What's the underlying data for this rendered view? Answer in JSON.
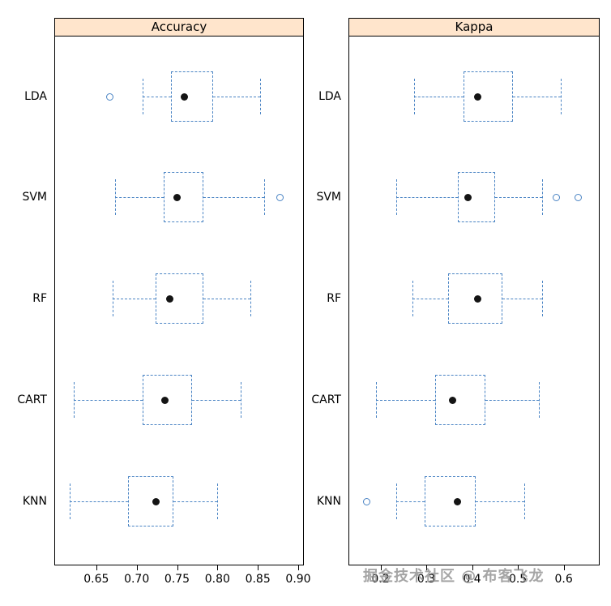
{
  "colors": {
    "box_line": "#4a84c4",
    "median_dot": "#141414",
    "strip_fill": "#ffe5cc",
    "panel_border": "#000000",
    "watermark": "#8f8f8f"
  },
  "watermark": {
    "text": "掘金技术社区 @ 布客飞龙"
  },
  "categories": [
    "LDA",
    "SVM",
    "RF",
    "CART",
    "KNN"
  ],
  "chart_data": [
    {
      "type": "boxplot",
      "title": "Accuracy",
      "orientation": "horizontal",
      "xlim": [
        0.598,
        0.905
      ],
      "ticks": [
        0.65,
        0.7,
        0.75,
        0.8,
        0.85,
        0.9
      ],
      "tick_labels": [
        "0.65",
        "0.70",
        "0.75",
        "0.80",
        "0.85",
        "0.90"
      ],
      "boxes": [
        {
          "category": "LDA",
          "whisker_low": 0.706,
          "q1": 0.741,
          "median": 0.758,
          "q3": 0.794,
          "whisker_high": 0.852,
          "outliers": [
            0.666
          ]
        },
        {
          "category": "SVM",
          "whisker_low": 0.672,
          "q1": 0.732,
          "median": 0.749,
          "q3": 0.782,
          "whisker_high": 0.857,
          "outliers": [
            0.876
          ]
        },
        {
          "category": "RF",
          "whisker_low": 0.669,
          "q1": 0.722,
          "median": 0.74,
          "q3": 0.782,
          "whisker_high": 0.84,
          "outliers": []
        },
        {
          "category": "CART",
          "whisker_low": 0.621,
          "q1": 0.706,
          "median": 0.734,
          "q3": 0.768,
          "whisker_high": 0.828,
          "outliers": []
        },
        {
          "category": "KNN",
          "whisker_low": 0.616,
          "q1": 0.688,
          "median": 0.723,
          "q3": 0.744,
          "whisker_high": 0.799,
          "outliers": []
        }
      ]
    },
    {
      "type": "boxplot",
      "title": "Kappa",
      "orientation": "horizontal",
      "xlim": [
        0.13,
        0.675
      ],
      "ticks": [
        0.2,
        0.3,
        0.4,
        0.5,
        0.6
      ],
      "tick_labels": [
        "0.2",
        "0.3",
        "0.4",
        "0.5",
        "0.6"
      ],
      "boxes": [
        {
          "category": "LDA",
          "whisker_low": 0.272,
          "q1": 0.379,
          "median": 0.41,
          "q3": 0.487,
          "whisker_high": 0.591,
          "outliers": []
        },
        {
          "category": "SVM",
          "whisker_low": 0.232,
          "q1": 0.367,
          "median": 0.389,
          "q3": 0.449,
          "whisker_high": 0.551,
          "outliers": [
            0.582,
            0.63
          ]
        },
        {
          "category": "RF",
          "whisker_low": 0.268,
          "q1": 0.346,
          "median": 0.41,
          "q3": 0.465,
          "whisker_high": 0.551,
          "outliers": []
        },
        {
          "category": "CART",
          "whisker_low": 0.189,
          "q1": 0.318,
          "median": 0.355,
          "q3": 0.427,
          "whisker_high": 0.544,
          "outliers": []
        },
        {
          "category": "KNN",
          "whisker_low": 0.232,
          "q1": 0.294,
          "median": 0.367,
          "q3": 0.406,
          "whisker_high": 0.513,
          "outliers": [
            0.168
          ]
        }
      ]
    }
  ]
}
